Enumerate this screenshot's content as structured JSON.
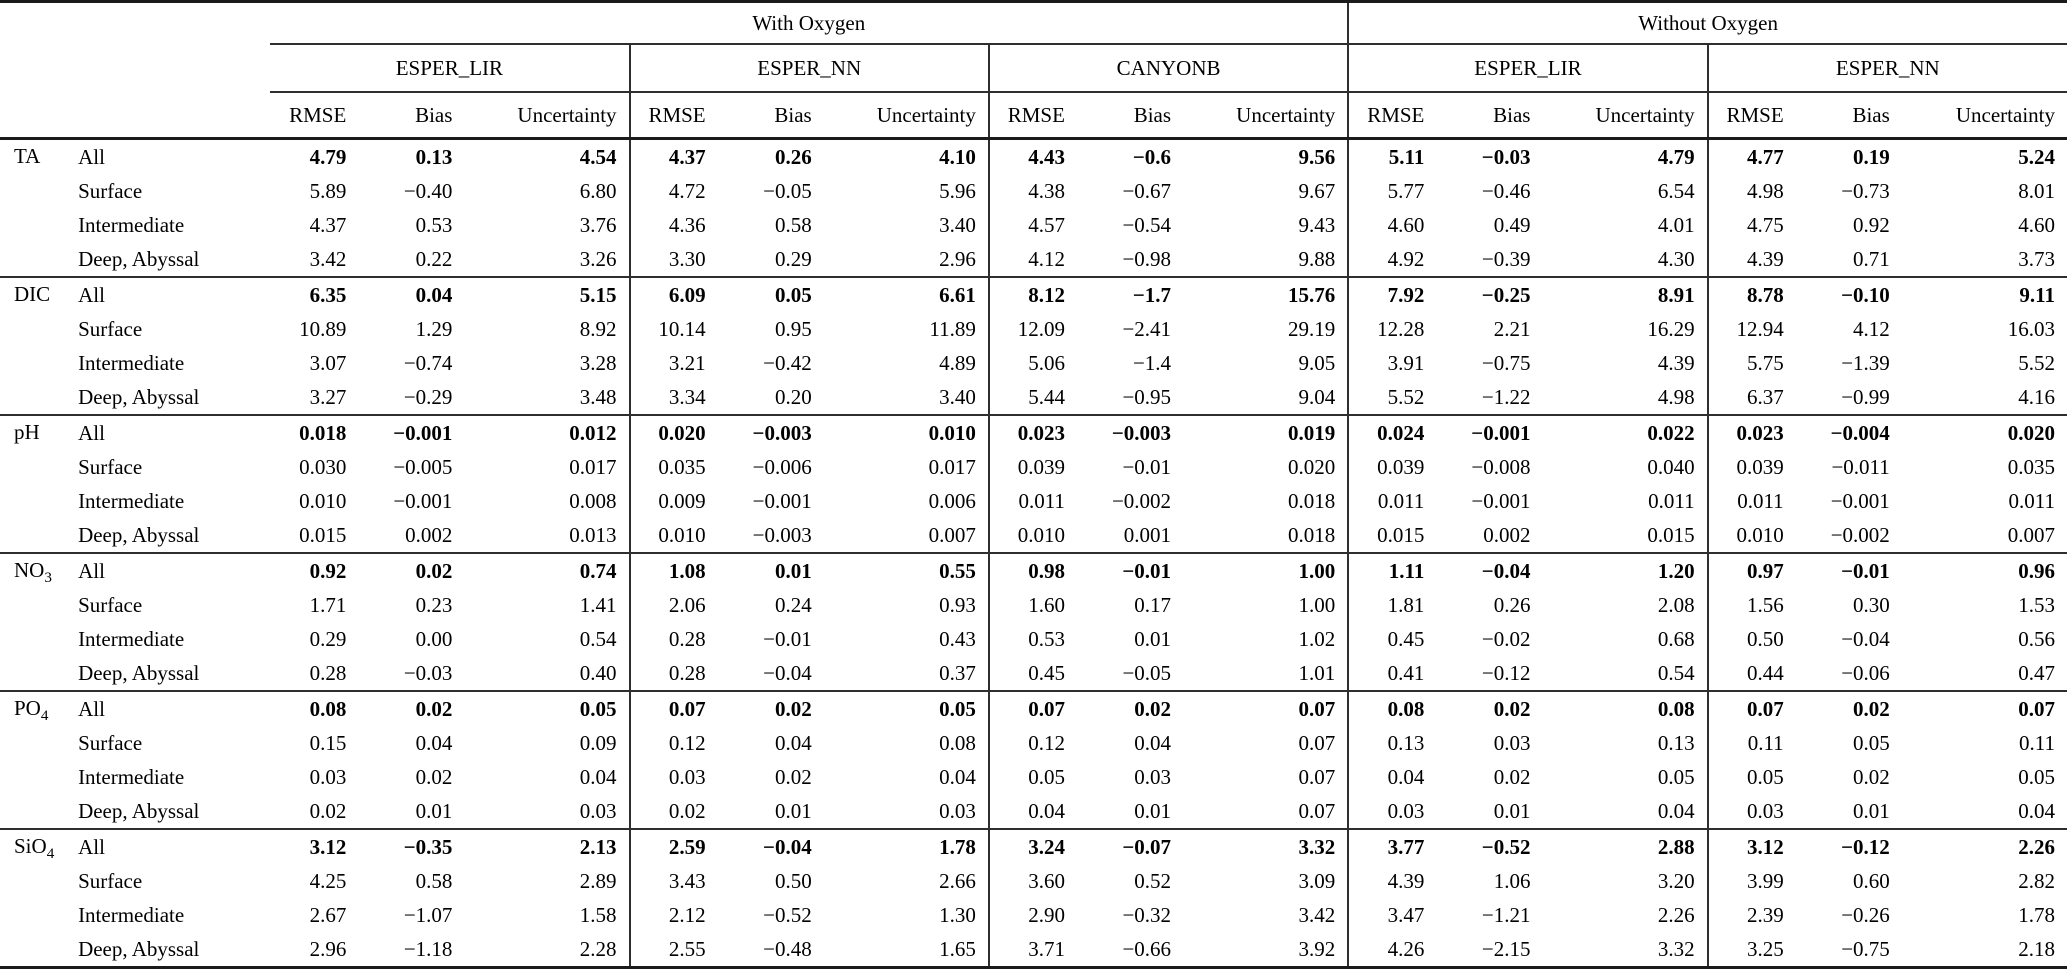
{
  "header": {
    "groups": [
      {
        "label": "With Oxygen",
        "methods": [
          "ESPER_LIR",
          "ESPER_NN",
          "CANYONB"
        ]
      },
      {
        "label": "Without Oxygen",
        "methods": [
          "ESPER_LIR",
          "ESPER_NN"
        ]
      }
    ],
    "metrics": [
      "RMSE",
      "Bias",
      "Uncertainty"
    ]
  },
  "sections": [
    {
      "variable": "TA",
      "variable_sub": "",
      "rows": [
        {
          "label": "All",
          "bold": true,
          "values": [
            "4.79",
            "0.13",
            "4.54",
            "4.37",
            "0.26",
            "4.10",
            "4.43",
            "−0.6",
            "9.56",
            "5.11",
            "−0.03",
            "4.79",
            "4.77",
            "0.19",
            "5.24"
          ]
        },
        {
          "label": "Surface",
          "bold": false,
          "values": [
            "5.89",
            "−0.40",
            "6.80",
            "4.72",
            "−0.05",
            "5.96",
            "4.38",
            "−0.67",
            "9.67",
            "5.77",
            "−0.46",
            "6.54",
            "4.98",
            "−0.73",
            "8.01"
          ]
        },
        {
          "label": "Intermediate",
          "bold": false,
          "values": [
            "4.37",
            "0.53",
            "3.76",
            "4.36",
            "0.58",
            "3.40",
            "4.57",
            "−0.54",
            "9.43",
            "4.60",
            "0.49",
            "4.01",
            "4.75",
            "0.92",
            "4.60"
          ]
        },
        {
          "label": "Deep, Abyssal",
          "bold": false,
          "values": [
            "3.42",
            "0.22",
            "3.26",
            "3.30",
            "0.29",
            "2.96",
            "4.12",
            "−0.98",
            "9.88",
            "4.92",
            "−0.39",
            "4.30",
            "4.39",
            "0.71",
            "3.73"
          ]
        }
      ]
    },
    {
      "variable": "DIC",
      "variable_sub": "",
      "rows": [
        {
          "label": "All",
          "bold": true,
          "values": [
            "6.35",
            "0.04",
            "5.15",
            "6.09",
            "0.05",
            "6.61",
            "8.12",
            "−1.7",
            "15.76",
            "7.92",
            "−0.25",
            "8.91",
            "8.78",
            "−0.10",
            "9.11"
          ]
        },
        {
          "label": "Surface",
          "bold": false,
          "values": [
            "10.89",
            "1.29",
            "8.92",
            "10.14",
            "0.95",
            "11.89",
            "12.09",
            "−2.41",
            "29.19",
            "12.28",
            "2.21",
            "16.29",
            "12.94",
            "4.12",
            "16.03"
          ]
        },
        {
          "label": "Intermediate",
          "bold": false,
          "values": [
            "3.07",
            "−0.74",
            "3.28",
            "3.21",
            "−0.42",
            "4.89",
            "5.06",
            "−1.4",
            "9.05",
            "3.91",
            "−0.75",
            "4.39",
            "5.75",
            "−1.39",
            "5.52"
          ]
        },
        {
          "label": "Deep, Abyssal",
          "bold": false,
          "values": [
            "3.27",
            "−0.29",
            "3.48",
            "3.34",
            "0.20",
            "3.40",
            "5.44",
            "−0.95",
            "9.04",
            "5.52",
            "−1.22",
            "4.98",
            "6.37",
            "−0.99",
            "4.16"
          ]
        }
      ]
    },
    {
      "variable": "pH",
      "variable_sub": "",
      "rows": [
        {
          "label": "All",
          "bold": true,
          "values": [
            "0.018",
            "−0.001",
            "0.012",
            "0.020",
            "−0.003",
            "0.010",
            "0.023",
            "−0.003",
            "0.019",
            "0.024",
            "−0.001",
            "0.022",
            "0.023",
            "−0.004",
            "0.020"
          ]
        },
        {
          "label": "Surface",
          "bold": false,
          "values": [
            "0.030",
            "−0.005",
            "0.017",
            "0.035",
            "−0.006",
            "0.017",
            "0.039",
            "−0.01",
            "0.020",
            "0.039",
            "−0.008",
            "0.040",
            "0.039",
            "−0.011",
            "0.035"
          ]
        },
        {
          "label": "Intermediate",
          "bold": false,
          "values": [
            "0.010",
            "−0.001",
            "0.008",
            "0.009",
            "−0.001",
            "0.006",
            "0.011",
            "−0.002",
            "0.018",
            "0.011",
            "−0.001",
            "0.011",
            "0.011",
            "−0.001",
            "0.011"
          ]
        },
        {
          "label": "Deep, Abyssal",
          "bold": false,
          "values": [
            "0.015",
            "0.002",
            "0.013",
            "0.010",
            "−0.003",
            "0.007",
            "0.010",
            "0.001",
            "0.018",
            "0.015",
            "0.002",
            "0.015",
            "0.010",
            "−0.002",
            "0.007"
          ]
        }
      ]
    },
    {
      "variable": "NO",
      "variable_sub": "3",
      "rows": [
        {
          "label": "All",
          "bold": true,
          "values": [
            "0.92",
            "0.02",
            "0.74",
            "1.08",
            "0.01",
            "0.55",
            "0.98",
            "−0.01",
            "1.00",
            "1.11",
            "−0.04",
            "1.20",
            "0.97",
            "−0.01",
            "0.96"
          ]
        },
        {
          "label": "Surface",
          "bold": false,
          "values": [
            "1.71",
            "0.23",
            "1.41",
            "2.06",
            "0.24",
            "0.93",
            "1.60",
            "0.17",
            "1.00",
            "1.81",
            "0.26",
            "2.08",
            "1.56",
            "0.30",
            "1.53"
          ]
        },
        {
          "label": "Intermediate",
          "bold": false,
          "values": [
            "0.29",
            "0.00",
            "0.54",
            "0.28",
            "−0.01",
            "0.43",
            "0.53",
            "0.01",
            "1.02",
            "0.45",
            "−0.02",
            "0.68",
            "0.50",
            "−0.04",
            "0.56"
          ]
        },
        {
          "label": "Deep, Abyssal",
          "bold": false,
          "values": [
            "0.28",
            "−0.03",
            "0.40",
            "0.28",
            "−0.04",
            "0.37",
            "0.45",
            "−0.05",
            "1.01",
            "0.41",
            "−0.12",
            "0.54",
            "0.44",
            "−0.06",
            "0.47"
          ]
        }
      ]
    },
    {
      "variable": "PO",
      "variable_sub": "4",
      "rows": [
        {
          "label": "All",
          "bold": true,
          "values": [
            "0.08",
            "0.02",
            "0.05",
            "0.07",
            "0.02",
            "0.05",
            "0.07",
            "0.02",
            "0.07",
            "0.08",
            "0.02",
            "0.08",
            "0.07",
            "0.02",
            "0.07"
          ]
        },
        {
          "label": "Surface",
          "bold": false,
          "values": [
            "0.15",
            "0.04",
            "0.09",
            "0.12",
            "0.04",
            "0.08",
            "0.12",
            "0.04",
            "0.07",
            "0.13",
            "0.03",
            "0.13",
            "0.11",
            "0.05",
            "0.11"
          ]
        },
        {
          "label": "Intermediate",
          "bold": false,
          "values": [
            "0.03",
            "0.02",
            "0.04",
            "0.03",
            "0.02",
            "0.04",
            "0.05",
            "0.03",
            "0.07",
            "0.04",
            "0.02",
            "0.05",
            "0.05",
            "0.02",
            "0.05"
          ]
        },
        {
          "label": "Deep, Abyssal",
          "bold": false,
          "values": [
            "0.02",
            "0.01",
            "0.03",
            "0.02",
            "0.01",
            "0.03",
            "0.04",
            "0.01",
            "0.07",
            "0.03",
            "0.01",
            "0.04",
            "0.03",
            "0.01",
            "0.04"
          ]
        }
      ]
    },
    {
      "variable": "SiO",
      "variable_sub": "4",
      "rows": [
        {
          "label": "All",
          "bold": true,
          "values": [
            "3.12",
            "−0.35",
            "2.13",
            "2.59",
            "−0.04",
            "1.78",
            "3.24",
            "−0.07",
            "3.32",
            "3.77",
            "−0.52",
            "2.88",
            "3.12",
            "−0.12",
            "2.26"
          ]
        },
        {
          "label": "Surface",
          "bold": false,
          "values": [
            "4.25",
            "0.58",
            "2.89",
            "3.43",
            "0.50",
            "2.66",
            "3.60",
            "0.52",
            "3.09",
            "4.39",
            "1.06",
            "3.20",
            "3.99",
            "0.60",
            "2.82"
          ]
        },
        {
          "label": "Intermediate",
          "bold": false,
          "values": [
            "2.67",
            "−1.07",
            "1.58",
            "2.12",
            "−0.52",
            "1.30",
            "2.90",
            "−0.32",
            "3.42",
            "3.47",
            "−1.21",
            "2.26",
            "2.39",
            "−0.26",
            "1.78"
          ]
        },
        {
          "label": "Deep, Abyssal",
          "bold": false,
          "values": [
            "2.96",
            "−1.18",
            "2.28",
            "2.55",
            "−0.48",
            "1.65",
            "3.71",
            "−0.66",
            "3.92",
            "4.26",
            "−2.15",
            "3.32",
            "3.25",
            "−0.75",
            "2.18"
          ]
        }
      ]
    }
  ]
}
